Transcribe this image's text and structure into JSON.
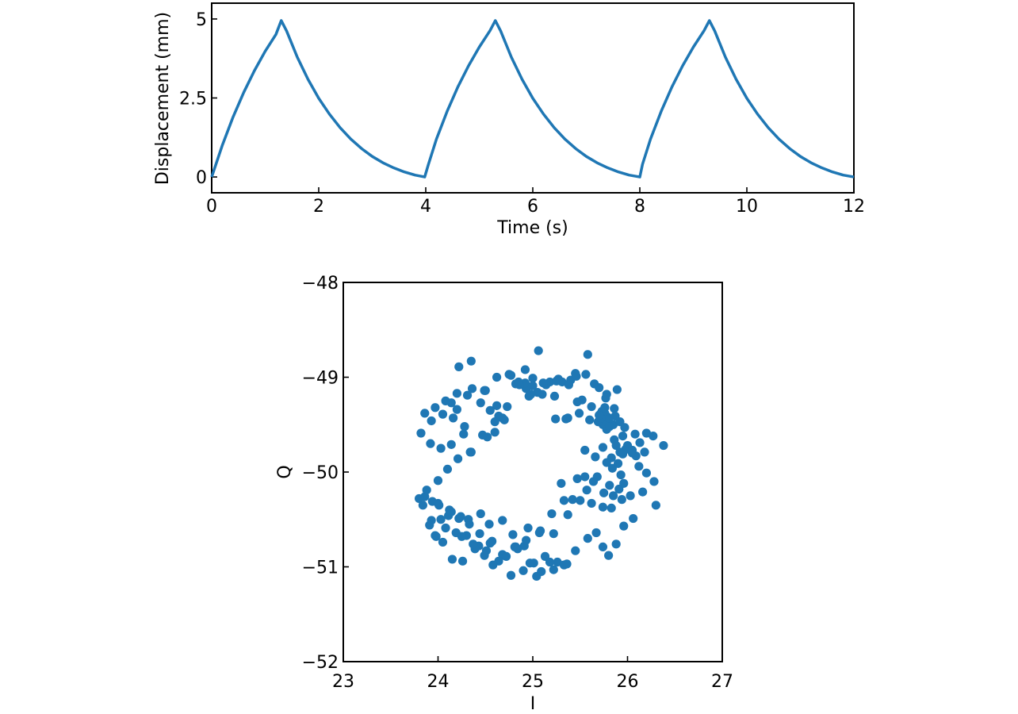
{
  "chart_data": [
    {
      "type": "line",
      "xlabel": "Time (s)",
      "ylabel": "Displacement (mm)",
      "xlim": [
        0,
        12
      ],
      "ylim": [
        -0.5,
        5.5
      ],
      "xticks": [
        0,
        2,
        4,
        6,
        8,
        10,
        12
      ],
      "xtick_labels": [
        "0",
        "2",
        "4",
        "6",
        "8",
        "10",
        "12"
      ],
      "yticks": [
        0,
        2.5,
        5
      ],
      "ytick_labels": [
        "0",
        "2.5",
        "5"
      ],
      "grid": false,
      "color": "#1f77b4",
      "series": [
        {
          "x": [
            0,
            0.2,
            0.4,
            0.6,
            0.8,
            1.0,
            1.2,
            1.3,
            1.4,
            1.6,
            1.8,
            2.0,
            2.2,
            2.4,
            2.6,
            2.8,
            3.0,
            3.2,
            3.4,
            3.6,
            3.8,
            3.98,
            4.05,
            4.2,
            4.4,
            4.6,
            4.8,
            5.0,
            5.2,
            5.3,
            5.4,
            5.6,
            5.8,
            6.0,
            6.2,
            6.4,
            6.6,
            6.8,
            7.0,
            7.2,
            7.4,
            7.6,
            7.8,
            8.0,
            8.05,
            8.2,
            8.4,
            8.6,
            8.8,
            9.0,
            9.2,
            9.3,
            9.4,
            9.6,
            9.8,
            10.0,
            10.2,
            10.4,
            10.6,
            10.8,
            11.0,
            11.2,
            11.4,
            11.6,
            11.8,
            12.0
          ],
          "y": [
            0,
            1.01,
            1.9,
            2.68,
            3.37,
            3.98,
            4.51,
            4.95,
            4.62,
            3.79,
            3.09,
            2.49,
            1.99,
            1.56,
            1.2,
            0.9,
            0.65,
            0.45,
            0.29,
            0.16,
            0.06,
            0.0,
            0.4,
            1.2,
            2.08,
            2.85,
            3.52,
            4.11,
            4.63,
            4.95,
            4.62,
            3.79,
            3.09,
            2.49,
            1.99,
            1.56,
            1.2,
            0.9,
            0.65,
            0.45,
            0.29,
            0.16,
            0.06,
            0.0,
            0.4,
            1.2,
            2.08,
            2.85,
            3.52,
            4.11,
            4.63,
            4.95,
            4.62,
            3.79,
            3.09,
            2.49,
            1.99,
            1.56,
            1.2,
            0.9,
            0.65,
            0.45,
            0.29,
            0.16,
            0.06,
            0.0
          ]
        }
      ]
    },
    {
      "type": "scatter",
      "xlabel": "I",
      "ylabel": "Q",
      "xlim": [
        23,
        27
      ],
      "ylim": [
        -52,
        -48
      ],
      "xticks": [
        23,
        24,
        25,
        26,
        27
      ],
      "xtick_labels": [
        "23",
        "24",
        "25",
        "26",
        "27"
      ],
      "yticks": [
        -52,
        -51,
        -50,
        -49,
        -48
      ],
      "ytick_labels": [
        "−52",
        "−51",
        "−50",
        "−49",
        "−48"
      ],
      "grid": false,
      "color": "#1f77b4",
      "points": {
        "x": [
          25.06,
          25.58,
          24.35,
          24.22,
          24.75,
          24.92,
          25.31,
          25.46,
          25.0,
          24.5,
          24.31,
          24.14,
          24.62,
          24.82,
          25.18,
          25.7,
          25.89,
          25.78,
          24.93,
          24.45,
          24.2,
          24.05,
          23.93,
          24.16,
          24.28,
          24.55,
          24.68,
          24.96,
          25.23,
          25.37,
          25.52,
          25.62,
          25.72,
          25.85,
          25.97,
          26.08,
          26.2,
          26.27,
          26.38,
          26.13,
          25.98,
          25.86,
          25.74,
          25.92,
          25.83,
          25.78,
          25.66,
          25.55,
          25.49,
          25.4,
          25.27,
          25.14,
          25.05,
          24.92,
          24.77,
          24.62,
          24.49,
          24.36,
          24.2,
          24.08,
          23.97,
          23.86,
          23.82,
          23.92,
          24.03,
          24.14,
          24.27,
          24.35,
          24.52,
          24.6,
          24.64,
          24.73,
          24.86,
          25.0,
          25.11,
          25.25,
          25.38,
          25.45,
          25.56,
          25.65,
          25.77,
          25.86,
          25.92,
          25.95,
          26.0,
          26.05,
          26.12,
          26.2,
          26.28,
          26.3,
          26.16,
          26.03,
          25.94,
          25.83,
          25.74,
          25.62,
          25.5,
          25.37,
          25.22,
          25.08,
          24.95,
          24.82,
          24.69,
          24.57,
          24.44,
          24.33,
          24.22,
          24.11,
          24.01,
          23.94,
          23.86,
          23.8,
          23.84,
          23.93,
          24.03,
          24.14,
          24.24,
          24.32,
          24.45,
          24.54,
          24.68,
          24.79,
          24.91,
          25.01,
          25.13,
          25.26,
          25.36,
          25.45,
          25.58,
          25.67,
          25.74,
          25.8,
          25.88,
          25.96,
          26.06,
          25.91,
          25.81,
          25.68,
          25.57,
          25.47,
          25.33,
          25.2,
          25.07,
          24.93,
          24.81,
          24.68,
          24.55,
          24.43,
          24.3,
          24.19,
          24.08,
          23.98,
          23.88,
          24.0,
          24.1,
          24.21,
          24.34,
          24.47,
          24.6,
          24.7,
          24.85,
          24.98,
          25.1,
          25.24,
          25.35,
          25.47,
          25.6,
          25.71,
          25.79,
          25.87,
          25.73,
          25.76,
          25.8,
          25.74,
          25.69,
          25.78,
          25.72,
          25.81,
          25.76,
          25.7,
          25.84,
          25.9,
          25.95,
          26.01,
          25.88,
          25.93,
          26.09,
          26.18,
          26.05,
          25.96,
          25.85,
          25.75,
          25.64,
          25.55,
          25.42,
          25.3,
          25.18,
          25.04,
          24.9,
          24.77,
          24.64,
          24.51,
          24.39,
          24.26,
          24.15,
          24.05,
          23.97,
          23.91,
          24.0,
          24.12,
          24.25,
          24.37,
          24.49,
          24.58,
          24.72,
          24.84,
          24.97,
          25.09,
          25.22,
          25.33
        ],
        "y": [
          -48.72,
          -48.76,
          -48.83,
          -48.89,
          -48.97,
          -48.92,
          -49.05,
          -48.99,
          -49.01,
          -49.14,
          -49.19,
          -49.27,
          -49.3,
          -49.07,
          -49.05,
          -49.11,
          -49.13,
          -49.18,
          -49.12,
          -49.27,
          -49.34,
          -49.39,
          -49.46,
          -49.43,
          -49.52,
          -49.35,
          -49.43,
          -49.2,
          -49.2,
          -49.43,
          -49.24,
          -49.31,
          -49.38,
          -49.5,
          -49.53,
          -49.6,
          -49.59,
          -49.62,
          -49.72,
          -49.69,
          -49.76,
          -49.66,
          -49.74,
          -49.79,
          -49.85,
          -49.9,
          -49.84,
          -49.77,
          -49.38,
          -49.03,
          -49.02,
          -49.08,
          -49.16,
          -49.06,
          -48.98,
          -49.0,
          -49.14,
          -49.12,
          -49.17,
          -49.25,
          -49.32,
          -49.38,
          -49.59,
          -49.7,
          -49.75,
          -49.71,
          -49.6,
          -49.79,
          -49.63,
          -49.58,
          -49.41,
          -49.31,
          -49.08,
          -49.09,
          -49.06,
          -49.04,
          -49.08,
          -48.96,
          -48.97,
          -49.07,
          -49.22,
          -49.33,
          -49.47,
          -49.62,
          -49.72,
          -49.8,
          -49.94,
          -50.01,
          -50.1,
          -50.35,
          -50.21,
          -50.25,
          -50.29,
          -50.38,
          -50.37,
          -50.33,
          -50.3,
          -50.45,
          -50.65,
          -50.62,
          -50.59,
          -50.79,
          -50.88,
          -50.73,
          -50.65,
          -50.55,
          -50.49,
          -50.46,
          -50.35,
          -50.31,
          -50.26,
          -50.28,
          -50.35,
          -50.51,
          -50.5,
          -50.42,
          -50.47,
          -50.5,
          -50.44,
          -50.55,
          -50.51,
          -50.66,
          -50.78,
          -50.96,
          -50.89,
          -50.95,
          -50.97,
          -50.83,
          -50.7,
          -50.64,
          -50.79,
          -50.88,
          -50.76,
          -50.57,
          -50.49,
          -50.18,
          -50.14,
          -50.05,
          -50.19,
          -50.07,
          -50.3,
          -50.44,
          -50.64,
          -50.72,
          -50.79,
          -50.87,
          -50.75,
          -50.78,
          -50.67,
          -50.64,
          -50.59,
          -50.68,
          -50.19,
          -50.09,
          -49.97,
          -49.86,
          -49.79,
          -49.61,
          -49.47,
          -49.45,
          -49.05,
          -49.18,
          -49.18,
          -49.44,
          -49.44,
          -49.26,
          -49.45,
          -49.45,
          -49.42,
          -49.41,
          -49.36,
          -49.38,
          -49.44,
          -49.5,
          -49.47,
          -49.55,
          -49.43,
          -49.52,
          -49.32,
          -49.4,
          -49.96,
          -49.91,
          -49.81,
          -49.76,
          -49.72,
          -50.03,
          -49.83,
          -49.79,
          -49.77,
          -50.12,
          -50.25,
          -50.22,
          -50.1,
          -50.05,
          -50.29,
          -50.12,
          -50.95,
          -51.1,
          -51.04,
          -51.09,
          -50.94,
          -50.83,
          -50.81,
          -50.94,
          -50.92,
          -50.74,
          -50.67,
          -50.56,
          -50.33,
          -50.4,
          -50.68,
          -50.76,
          -50.88,
          -50.98,
          -50.89,
          -50.81,
          -50.96,
          -51.05,
          -51.03,
          -50.98
        ]
      }
    }
  ]
}
